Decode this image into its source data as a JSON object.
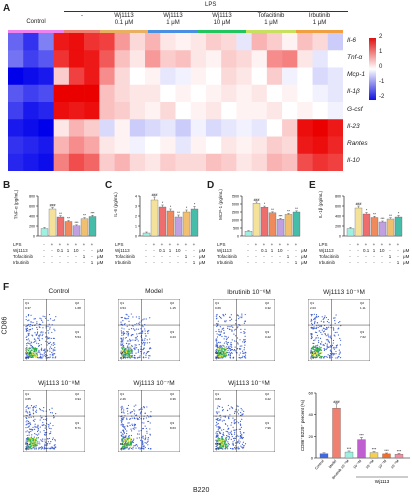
{
  "panelA": {
    "letter": "A",
    "lps_label": "LPS",
    "groups": [
      {
        "l1": "Control",
        "l2": ""
      },
      {
        "l1": "-",
        "l2": ""
      },
      {
        "l1": "Wj1113",
        "l2": "0.1 μM"
      },
      {
        "l1": "Wj1113",
        "l2": "1 μM"
      },
      {
        "l1": "Wj1113",
        "l2": "10 μM"
      },
      {
        "l1": "Tofacitinib",
        "l2": "1 μM"
      },
      {
        "l1": "Irbutinib",
        "l2": "1 μM"
      }
    ],
    "group_colors": [
      "#ee82ee",
      "#f08070",
      "#e8b060",
      "#4a90e2",
      "#22c55e",
      "#c8e060",
      "#f0a040"
    ],
    "genes": [
      "Il-6",
      "Tnf-α",
      "Mcp-1",
      "Il-1β",
      "G-csf",
      "Il-23",
      "Rantes",
      "Il-10"
    ],
    "colorbar": {
      "ticks": [
        "2",
        "1",
        "0",
        "-1",
        "-2"
      ],
      "max": 2,
      "min": -2
    },
    "heatmap": [
      [
        -1.2,
        -1.6,
        -1.0,
        1.8,
        1.9,
        1.6,
        1.5,
        0.8,
        0.3,
        0.6,
        0.2,
        0.1,
        0.2,
        0.4,
        0.3,
        -0.2,
        0.6,
        0.4,
        0.1,
        0.5,
        0.3,
        -0.4
      ],
      [
        -1.1,
        -1.5,
        -1.3,
        1.6,
        1.9,
        1.8,
        1.3,
        0.5,
        0.2,
        0.8,
        0.4,
        0.5,
        0.2,
        0.1,
        0.4,
        0.3,
        0.1,
        0.9,
        1.0,
        0.2,
        -0.2,
        0.0
      ],
      [
        -2.0,
        -1.9,
        -1.8,
        0.4,
        1.5,
        1.8,
        0.9,
        0.3,
        0.0,
        0.1,
        -0.2,
        -0.1,
        0.1,
        0.0,
        0.3,
        0.2,
        0.0,
        0.4,
        -0.1,
        0.0,
        -0.3,
        -0.2
      ],
      [
        -1.3,
        -1.5,
        -1.4,
        2.0,
        2.0,
        2.0,
        0.5,
        0.3,
        0.2,
        0.2,
        0.0,
        0.1,
        0.0,
        0.1,
        0.2,
        0.1,
        0.2,
        0.0,
        0.1,
        0.0,
        -0.1,
        -0.2
      ],
      [
        -1.5,
        -1.8,
        -1.7,
        1.9,
        1.8,
        1.9,
        0.5,
        0.4,
        0.2,
        0.1,
        0.3,
        0.0,
        0.1,
        0.2,
        0.0,
        0.1,
        0.1,
        0.2,
        0.0,
        0.1,
        0.0,
        -0.1
      ],
      [
        -1.8,
        -1.9,
        -2.0,
        0.2,
        0.6,
        0.4,
        -0.3,
        0.1,
        -0.4,
        -0.3,
        -0.2,
        -0.4,
        -0.1,
        -0.3,
        -0.2,
        -0.1,
        -0.2,
        0.0,
        0.4,
        1.9,
        2.0,
        1.8
      ],
      [
        -1.6,
        -1.7,
        -1.8,
        0.6,
        0.9,
        0.7,
        0.2,
        0.1,
        -0.1,
        0.0,
        0.1,
        -0.2,
        0.1,
        0.0,
        0.2,
        0.1,
        0.2,
        0.4,
        0.3,
        1.8,
        1.9,
        1.7
      ],
      [
        -1.7,
        -1.8,
        -1.9,
        1.0,
        1.4,
        1.2,
        0.4,
        0.6,
        0.3,
        0.2,
        0.4,
        0.3,
        0.3,
        0.5,
        0.4,
        0.2,
        0.3,
        0.6,
        0.5,
        1.4,
        1.6,
        1.5
      ]
    ]
  },
  "bars": [
    {
      "letter": "B",
      "ylabel": "TNF-α (pg/mL)",
      "yticks": [
        "0",
        "200",
        "400",
        "600",
        "800"
      ],
      "values": [
        150,
        540,
        380,
        290,
        205,
        345,
        390
      ],
      "errors": [
        20,
        30,
        25,
        20,
        18,
        22,
        25
      ],
      "ymax": 800,
      "sig": [
        "",
        "###",
        "**",
        "**",
        "***",
        "**",
        "***"
      ]
    },
    {
      "letter": "C",
      "ylabel": "IL-6 (pg/mL)",
      "yticks": [
        "0",
        "1",
        "2",
        "3",
        "4"
      ],
      "values": [
        0.3,
        3.6,
        2.9,
        2.5,
        1.9,
        2.4,
        2.7
      ],
      "errors": [
        0.1,
        0.3,
        0.2,
        0.2,
        0.2,
        0.2,
        0.25
      ],
      "ymax": 4,
      "sig": [
        "",
        "###",
        "*",
        "*",
        "**",
        "*",
        "*"
      ]
    },
    {
      "letter": "D",
      "ylabel": "MCP-1 (pg/mL)",
      "yticks": [
        "0",
        "500",
        "1000",
        "1500",
        "2000",
        "2500"
      ],
      "values": [
        300,
        2050,
        1800,
        1450,
        1050,
        1350,
        1500
      ],
      "errors": [
        40,
        80,
        70,
        60,
        50,
        60,
        70
      ],
      "ymax": 2500,
      "sig": [
        "",
        "###",
        "*",
        "**",
        "***",
        "**",
        "**"
      ]
    },
    {
      "letter": "E",
      "ylabel": "IL-1β (pg/mL)",
      "yticks": [
        "0",
        "200",
        "400",
        "600",
        "800"
      ],
      "values": [
        150,
        560,
        440,
        370,
        280,
        340,
        380
      ],
      "errors": [
        20,
        40,
        30,
        25,
        20,
        25,
        30
      ],
      "ymax": 800,
      "sig": [
        "",
        "###",
        "*",
        "**",
        "***",
        "**",
        "*"
      ]
    }
  ],
  "bar_colors": [
    "#9ef0e0",
    "#f5e29a",
    "#ee6d6d",
    "#f08a5c",
    "#c0a0e0",
    "#f0c070",
    "#45bda8"
  ],
  "treat_table": {
    "rows": [
      "LPS",
      "Wj1113",
      "Tofacitinib",
      "Irbutinib"
    ],
    "cols": [
      [
        "-",
        "+",
        "+",
        "+",
        "+",
        "+",
        "+"
      ],
      [
        "-",
        "-",
        "0.1",
        "1",
        "10",
        "-",
        "-"
      ],
      [
        "-",
        "-",
        "-",
        "-",
        "-",
        "1",
        "-"
      ],
      [
        "-",
        "-",
        "-",
        "-",
        "-",
        "-",
        "1"
      ]
    ],
    "unit": "μM"
  },
  "panelF": {
    "letter": "F",
    "yaxis": "CD86",
    "xaxis": "B220",
    "plots": [
      {
        "title": "Control",
        "q": [
          "Q1",
          "Q2",
          "Q3",
          "Q4"
        ],
        "v": [
          "0.37",
          "1.68",
          "5.54",
          "94.2"
        ]
      },
      {
        "title": "Model",
        "q": [
          "Q1",
          "Q2",
          "Q3",
          "Q4"
        ],
        "v": [
          "0.54",
          "1.15",
          "0.23",
          "98.1"
        ]
      },
      {
        "title": "Ibrutinib  10⁻⁶M",
        "q": [
          "Q1",
          "Q2",
          "Q3",
          "Q4"
        ],
        "v": [
          "0.69",
          "0.32",
          "0.22",
          "98.8"
        ]
      },
      {
        "title": "Wj1113  10⁻⁹M",
        "q": [
          "Q1",
          "Q2",
          "Q3",
          "Q4"
        ],
        "v": [
          "2.03",
          "1.11",
          "7.62",
          "89.2"
        ]
      },
      {
        "title": "Wj1113  10⁻⁸M",
        "q": [
          "Q1",
          "Q2",
          "Q3",
          "Q4"
        ],
        "v": [
          "3.65",
          "0.94",
          "8.71",
          "86.7"
        ]
      },
      {
        "title": "Wj1113  10⁻⁷M",
        "q": [
          "Q1",
          "Q2",
          "Q3",
          "Q4"
        ],
        "v": [
          "2.46",
          "0.36",
          "8.63",
          "88.6"
        ]
      },
      {
        "title": "Wj1113  10⁻⁶M",
        "q": [
          "Q1",
          "Q2",
          "Q3",
          "Q4"
        ],
        "v": [
          "3.84",
          "0.22",
          "7.96",
          "88.0"
        ]
      }
    ],
    "bar": {
      "ylabel": "CD86⁺B220⁺ percent (%)",
      "yticks": [
        "0",
        "20",
        "40",
        "60"
      ],
      "ymax": 60,
      "categories": [
        "Control",
        "Model",
        "Ibrutinib 10⁻⁶M",
        "10⁻⁹M",
        "10⁻⁸M",
        "10⁻⁷M",
        "10⁻⁶M"
      ],
      "values": [
        4.0,
        46,
        5.5,
        17,
        5.0,
        3.8,
        3.5
      ],
      "errors": [
        0.8,
        4,
        1.0,
        2,
        1.0,
        0.8,
        0.8
      ],
      "colors": [
        "#4169e1",
        "#f08070",
        "#9ef0e0",
        "#c060d0",
        "#f5d050",
        "#f07030",
        "#f090a0"
      ],
      "sig": [
        "",
        "###",
        "***",
        "***",
        "***",
        "***",
        "***"
      ],
      "group_label": "Wj1113"
    }
  }
}
